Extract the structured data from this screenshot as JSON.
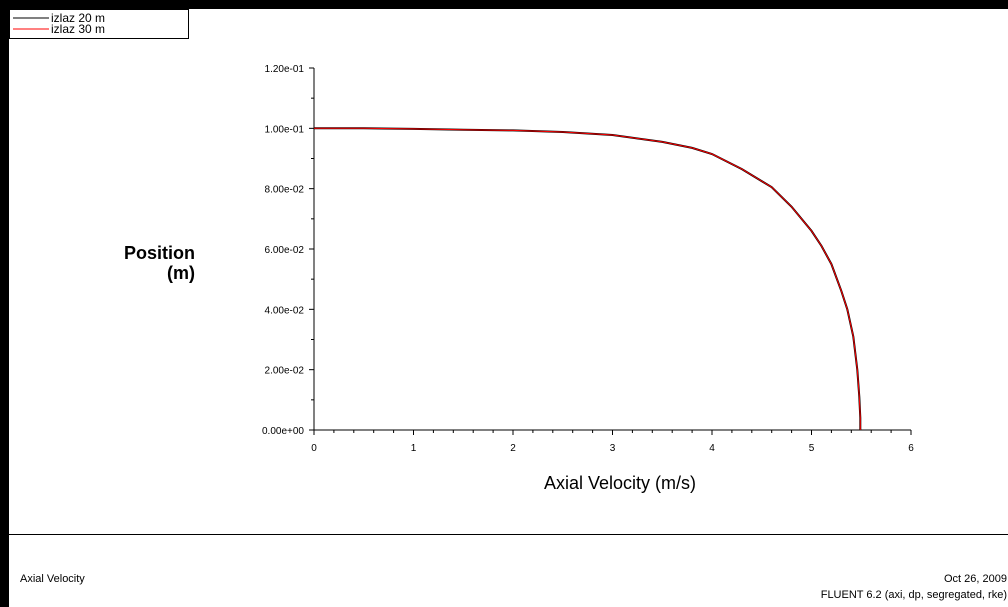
{
  "chart_data": {
    "type": "line",
    "xlabel": "Axial Velocity (m/s)",
    "ylabel_line1": "Position",
    "ylabel_line2": "(m)",
    "xlim": [
      0,
      6
    ],
    "ylim": [
      0,
      0.12
    ],
    "x_ticks": [
      "0",
      "1",
      "2",
      "3",
      "4",
      "5",
      "6"
    ],
    "y_ticks": [
      "0.00e+00",
      "2.00e-02",
      "4.00e-02",
      "6.00e-02",
      "8.00e-02",
      "1.00e-01",
      "1.20e-01"
    ],
    "legend_position": "top-left",
    "series": [
      {
        "name": "izlaz 20 m",
        "color": "#000000",
        "points": [
          [
            0.0,
            0.1
          ],
          [
            0.5,
            0.1
          ],
          [
            1.0,
            0.0998
          ],
          [
            1.5,
            0.0995
          ],
          [
            2.0,
            0.0993
          ],
          [
            2.5,
            0.0988
          ],
          [
            3.0,
            0.0978
          ],
          [
            3.5,
            0.0955
          ],
          [
            3.8,
            0.0935
          ],
          [
            4.0,
            0.0915
          ],
          [
            4.3,
            0.0865
          ],
          [
            4.6,
            0.0805
          ],
          [
            4.8,
            0.074
          ],
          [
            5.0,
            0.066
          ],
          [
            5.1,
            0.061
          ],
          [
            5.2,
            0.055
          ],
          [
            5.3,
            0.046
          ],
          [
            5.36,
            0.04
          ],
          [
            5.42,
            0.031
          ],
          [
            5.46,
            0.02
          ],
          [
            5.48,
            0.011
          ],
          [
            5.49,
            0.004
          ],
          [
            5.49,
            0.0
          ]
        ]
      },
      {
        "name": "izlaz 30 m",
        "color": "#ff0000",
        "points": [
          [
            0.0,
            0.1
          ],
          [
            0.5,
            0.1
          ],
          [
            1.0,
            0.0998
          ],
          [
            1.5,
            0.0995
          ],
          [
            2.0,
            0.0993
          ],
          [
            2.5,
            0.0988
          ],
          [
            3.0,
            0.0978
          ],
          [
            3.5,
            0.0955
          ],
          [
            3.8,
            0.0935
          ],
          [
            4.0,
            0.0915
          ],
          [
            4.3,
            0.0865
          ],
          [
            4.6,
            0.0805
          ],
          [
            4.8,
            0.074
          ],
          [
            5.0,
            0.066
          ],
          [
            5.1,
            0.061
          ],
          [
            5.2,
            0.055
          ],
          [
            5.3,
            0.046
          ],
          [
            5.36,
            0.04
          ],
          [
            5.42,
            0.031
          ],
          [
            5.46,
            0.02
          ],
          [
            5.48,
            0.011
          ],
          [
            5.49,
            0.004
          ],
          [
            5.49,
            0.0
          ]
        ]
      }
    ]
  },
  "footer": {
    "title": "Axial Velocity",
    "date": "Oct 26, 2009",
    "version": "FLUENT 6.2 (axi, dp, segregated, rke)"
  }
}
